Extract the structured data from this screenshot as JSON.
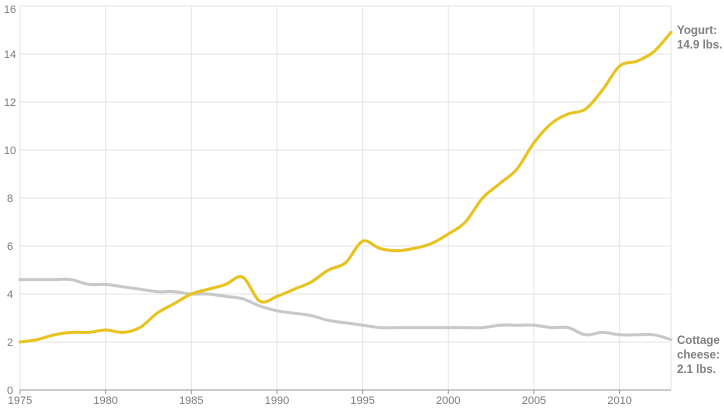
{
  "chart_data": {
    "type": "line",
    "title": "",
    "xlabel": "",
    "ylabel": "",
    "xlim": [
      1975,
      2013
    ],
    "ylim": [
      0,
      16
    ],
    "x_ticks": [
      1975,
      1980,
      1985,
      1990,
      1995,
      2000,
      2005,
      2010
    ],
    "x_tick_labels": [
      "1975",
      "1980",
      "1985",
      "1990",
      "1995",
      "2000",
      "2005",
      "2010"
    ],
    "y_ticks": [
      0,
      2,
      4,
      6,
      8,
      10,
      12,
      14,
      16
    ],
    "y_tick_labels": [
      "0",
      "2",
      "4",
      "6",
      "8",
      "10",
      "12",
      "14",
      "16"
    ],
    "grid": true,
    "legend": "none",
    "x": [
      1975,
      1976,
      1977,
      1978,
      1979,
      1980,
      1981,
      1982,
      1983,
      1984,
      1985,
      1986,
      1987,
      1988,
      1989,
      1990,
      1991,
      1992,
      1993,
      1994,
      1995,
      1996,
      1997,
      1998,
      1999,
      2000,
      2001,
      2002,
      2003,
      2004,
      2005,
      2006,
      2007,
      2008,
      2009,
      2010,
      2011,
      2012,
      2013
    ],
    "series": [
      {
        "key": "yogurt",
        "color": "#e8c21e",
        "values": [
          2.0,
          2.1,
          2.3,
          2.4,
          2.4,
          2.5,
          2.4,
          2.6,
          3.2,
          3.6,
          4.0,
          4.2,
          4.4,
          4.7,
          3.7,
          3.9,
          4.2,
          4.5,
          5.0,
          5.3,
          6.2,
          5.9,
          5.8,
          5.9,
          6.1,
          6.5,
          7.0,
          8.0,
          8.6,
          9.2,
          10.3,
          11.1,
          11.5,
          11.7,
          12.5,
          13.5,
          13.7,
          14.1,
          14.9
        ],
        "end_label": [
          "Yogurt:",
          "14.9 lbs."
        ]
      },
      {
        "key": "cottage",
        "color": "#c8c8c8",
        "values": [
          4.6,
          4.6,
          4.6,
          4.6,
          4.4,
          4.4,
          4.3,
          4.2,
          4.1,
          4.1,
          4.0,
          4.0,
          3.9,
          3.8,
          3.5,
          3.3,
          3.2,
          3.1,
          2.9,
          2.8,
          2.7,
          2.6,
          2.6,
          2.6,
          2.6,
          2.6,
          2.6,
          2.6,
          2.7,
          2.7,
          2.7,
          2.6,
          2.6,
          2.3,
          2.4,
          2.3,
          2.3,
          2.3,
          2.1
        ],
        "end_label": [
          "Cottage",
          "cheese:",
          "2.1 lbs."
        ]
      }
    ]
  }
}
